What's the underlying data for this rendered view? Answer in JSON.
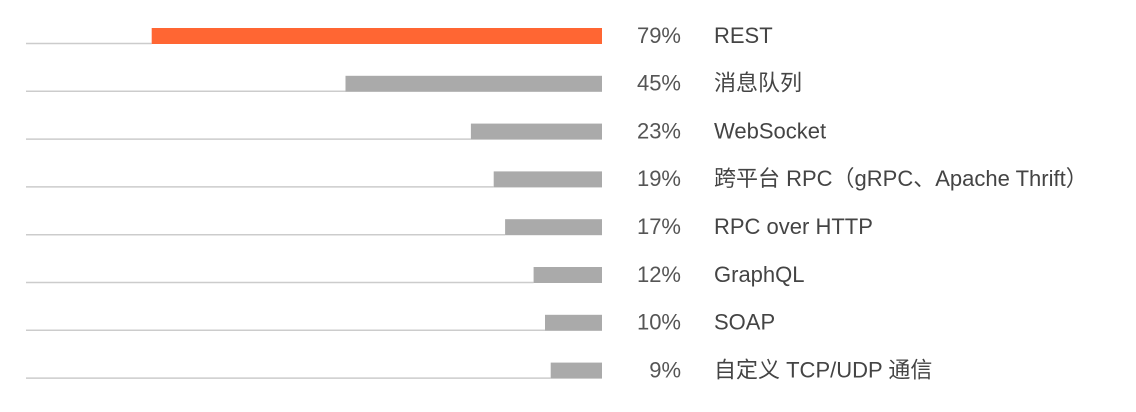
{
  "chart_data": {
    "type": "bar",
    "orientation": "horizontal",
    "categories": [
      "REST",
      "消息队列",
      "WebSocket",
      "跨平台 RPC（gRPC、Apache Thrift）",
      "RPC over HTTP",
      "GraphQL",
      "SOAP",
      "自定义 TCP/UDP 通信"
    ],
    "values": [
      79,
      45,
      23,
      19,
      17,
      12,
      10,
      9
    ],
    "value_labels": [
      "79%",
      "45%",
      "23%",
      "19%",
      "17%",
      "12%",
      "10%",
      "9%"
    ],
    "unit": "%",
    "highlight_index": 0,
    "xlim": [
      0,
      100
    ],
    "grid": false,
    "legend": "none",
    "title": "",
    "xlabel": "",
    "ylabel": ""
  },
  "colors": {
    "highlight": "#ff6633",
    "bar": "#aaaaaa",
    "baseline": "#cccccc",
    "highlight_text": "#ff6633",
    "text": "#444444",
    "pct_text": "#555555"
  }
}
